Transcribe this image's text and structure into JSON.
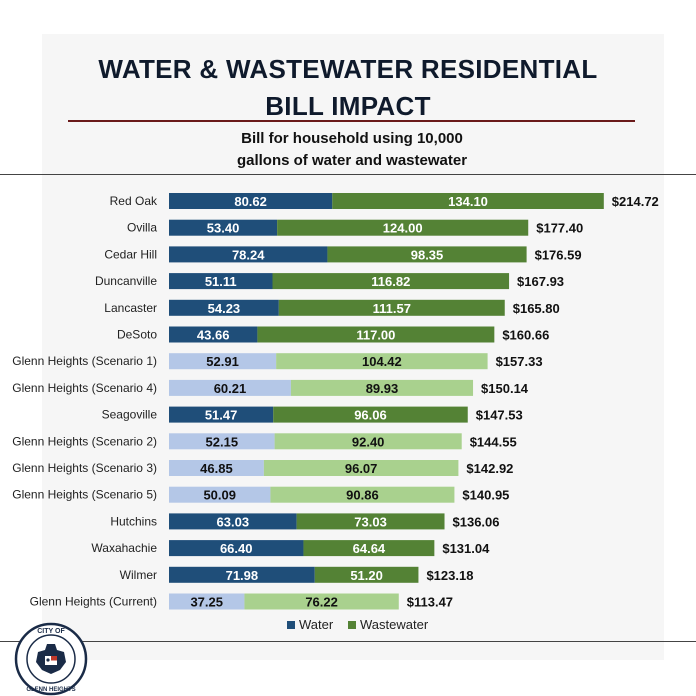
{
  "header": {
    "title_line1": "WATER & WASTEWATER RESIDENTIAL",
    "title_line2": "BILL IMPACT",
    "subtitle_line1": "Bill for household using 10,000",
    "subtitle_line2": "gallons of water and wastewater"
  },
  "seal": {
    "text": "CITY OF GLENN HEIGHTS"
  },
  "colors": {
    "water": "#1f4e79",
    "wastewater": "#548235",
    "water_gh": "#b4c7e7",
    "wastewater_gh": "#a9d18e"
  },
  "chart_data": {
    "type": "bar",
    "orientation": "horizontal",
    "stacked": true,
    "categories": [
      "Red Oak",
      "Ovilla",
      "Cedar Hill",
      "Duncanville",
      "Lancaster",
      "DeSoto",
      "Glenn Heights (Scenario 1)",
      "Glenn Heights (Scenario 4)",
      "Seagoville",
      "Glenn Heights (Scenario 2)",
      "Glenn Heights (Scenario 3)",
      "Glenn Heights (Scenario 5)",
      "Hutchins",
      "Waxahachie",
      "Wilmer",
      "Glenn Heights (Current)"
    ],
    "series": [
      {
        "name": "Water",
        "values": [
          80.62,
          53.4,
          78.24,
          51.11,
          54.23,
          43.66,
          52.91,
          60.21,
          51.47,
          52.15,
          46.85,
          50.09,
          63.03,
          66.4,
          71.98,
          37.25
        ],
        "labels": [
          "80.62",
          "53.40",
          "78.24",
          "51.11",
          "54.23",
          "43.66",
          "52.91",
          "60.21",
          "51.47",
          "52.15",
          "46.85",
          "50.09",
          "63.03",
          "66.40",
          "71.98",
          "37.25"
        ]
      },
      {
        "name": "Wastewater",
        "values": [
          134.1,
          124.0,
          98.35,
          116.82,
          111.57,
          117.0,
          104.42,
          89.93,
          96.06,
          92.4,
          96.07,
          90.86,
          73.03,
          64.64,
          51.2,
          76.22
        ],
        "labels": [
          "134.10",
          "124.00",
          "98.35",
          "116.82",
          "111.57",
          "117.00",
          "104.42",
          "89.93",
          "96.06",
          "92.40",
          "96.07",
          "90.86",
          "73.03",
          "64.64",
          "51.20",
          "76.22"
        ]
      }
    ],
    "totals": [
      "$214.72",
      "$177.40",
      "$176.59",
      "$167.93",
      "$165.80",
      "$160.66",
      "$157.33",
      "$150.14",
      "$147.53",
      "$144.55",
      "$142.92",
      "$140.95",
      "$136.06",
      "$131.04",
      "$123.18",
      "$113.47"
    ],
    "glenn_heights_highlight": [
      false,
      false,
      false,
      false,
      false,
      false,
      true,
      true,
      false,
      true,
      true,
      true,
      false,
      false,
      false,
      true
    ],
    "legend": [
      "Water",
      "Wastewater"
    ],
    "legend_position": "bottom",
    "grid": false
  }
}
